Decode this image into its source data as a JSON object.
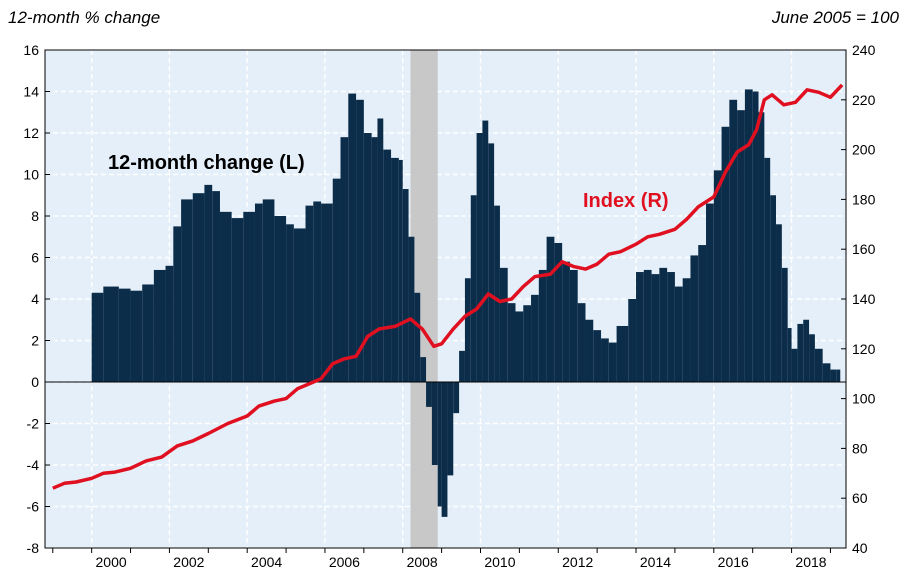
{
  "chart_data": {
    "type": "bar+line",
    "left_axis_unit": "12-month % change",
    "right_axis_unit": "June 2005 = 100",
    "annotations": [
      "12-month change (L)",
      "Index (R)"
    ],
    "x_range": [
      1998.8,
      2019.4
    ],
    "x_ticks": [
      "2000",
      "2002",
      "2004",
      "2006",
      "2008",
      "2010",
      "2012",
      "2014",
      "2016",
      "2018"
    ],
    "y_left": {
      "min": -8,
      "max": 16,
      "ticks": [
        "-8",
        "-6",
        "-4",
        "-2",
        "0",
        "2",
        "4",
        "6",
        "8",
        "10",
        "12",
        "14",
        "16"
      ]
    },
    "y_right": {
      "min": 40,
      "max": 240,
      "ticks": [
        "40",
        "60",
        "80",
        "100",
        "120",
        "140",
        "160",
        "180",
        "200",
        "220",
        "240"
      ]
    },
    "grid": true,
    "recession_band": [
      2008.2,
      2008.9
    ],
    "colors": {
      "bars": "#0c2d4a",
      "index_line": "#e01020",
      "plot_bg": "#e4eff9",
      "recession": "#c8c8c8"
    },
    "series": [
      {
        "name": "12-month change (L)",
        "kind": "bar",
        "axis": "left",
        "points": [
          [
            2000.0,
            4.3
          ],
          [
            2000.3,
            4.6
          ],
          [
            2000.7,
            4.5
          ],
          [
            2001.0,
            4.4
          ],
          [
            2001.3,
            4.7
          ],
          [
            2001.6,
            5.4
          ],
          [
            2001.9,
            5.6
          ],
          [
            2002.1,
            7.5
          ],
          [
            2002.3,
            8.8
          ],
          [
            2002.6,
            9.1
          ],
          [
            2002.9,
            9.5
          ],
          [
            2003.1,
            9.2
          ],
          [
            2003.3,
            8.2
          ],
          [
            2003.6,
            7.9
          ],
          [
            2003.9,
            8.2
          ],
          [
            2004.2,
            8.6
          ],
          [
            2004.4,
            8.8
          ],
          [
            2004.7,
            8.0
          ],
          [
            2005.0,
            7.6
          ],
          [
            2005.2,
            7.4
          ],
          [
            2005.5,
            8.5
          ],
          [
            2005.7,
            8.7
          ],
          [
            2005.9,
            8.6
          ],
          [
            2006.2,
            9.8
          ],
          [
            2006.4,
            11.8
          ],
          [
            2006.6,
            13.9
          ],
          [
            2006.8,
            13.6
          ],
          [
            2007.0,
            12.0
          ],
          [
            2007.2,
            11.8
          ],
          [
            2007.35,
            12.7
          ],
          [
            2007.5,
            11.2
          ],
          [
            2007.7,
            10.8
          ],
          [
            2007.9,
            10.7
          ],
          [
            2008.0,
            9.3
          ],
          [
            2008.15,
            7.0
          ],
          [
            2008.3,
            4.3
          ],
          [
            2008.45,
            1.2
          ],
          [
            2008.6,
            -1.2
          ],
          [
            2008.75,
            -4.0
          ],
          [
            2008.9,
            -6.0
          ],
          [
            2009.0,
            -6.5
          ],
          [
            2009.15,
            -4.5
          ],
          [
            2009.3,
            -1.5
          ],
          [
            2009.45,
            1.5
          ],
          [
            2009.6,
            5.0
          ],
          [
            2009.75,
            9.0
          ],
          [
            2009.9,
            12.0
          ],
          [
            2010.05,
            12.6
          ],
          [
            2010.2,
            11.5
          ],
          [
            2010.35,
            8.5
          ],
          [
            2010.5,
            5.5
          ],
          [
            2010.7,
            3.8
          ],
          [
            2010.9,
            3.4
          ],
          [
            2011.1,
            3.7
          ],
          [
            2011.3,
            4.2
          ],
          [
            2011.5,
            5.4
          ],
          [
            2011.7,
            7.0
          ],
          [
            2011.9,
            6.7
          ],
          [
            2012.1,
            5.8
          ],
          [
            2012.3,
            5.4
          ],
          [
            2012.5,
            3.8
          ],
          [
            2012.7,
            3.0
          ],
          [
            2012.9,
            2.5
          ],
          [
            2013.1,
            2.1
          ],
          [
            2013.3,
            1.9
          ],
          [
            2013.5,
            2.7
          ],
          [
            2013.8,
            4.0
          ],
          [
            2014.0,
            5.3
          ],
          [
            2014.2,
            5.4
          ],
          [
            2014.4,
            5.2
          ],
          [
            2014.6,
            5.5
          ],
          [
            2014.8,
            5.3
          ],
          [
            2015.0,
            4.6
          ],
          [
            2015.2,
            5.0
          ],
          [
            2015.4,
            6.1
          ],
          [
            2015.6,
            6.6
          ],
          [
            2015.8,
            8.6
          ],
          [
            2016.0,
            10.2
          ],
          [
            2016.2,
            12.3
          ],
          [
            2016.4,
            13.6
          ],
          [
            2016.6,
            13.1
          ],
          [
            2016.8,
            14.1
          ],
          [
            2017.0,
            14.0
          ],
          [
            2017.15,
            13.0
          ],
          [
            2017.3,
            10.8
          ],
          [
            2017.45,
            9.0
          ],
          [
            2017.6,
            7.6
          ],
          [
            2017.75,
            5.5
          ],
          [
            2017.9,
            2.6
          ],
          [
            2018.0,
            1.6
          ],
          [
            2018.15,
            2.8
          ],
          [
            2018.3,
            3.0
          ],
          [
            2018.45,
            2.3
          ],
          [
            2018.6,
            1.6
          ],
          [
            2018.8,
            0.9
          ],
          [
            2019.0,
            0.6
          ],
          [
            2019.15,
            0.6
          ]
        ]
      },
      {
        "name": "Index (R)",
        "kind": "line",
        "axis": "right",
        "points": [
          [
            1999.0,
            64
          ],
          [
            1999.3,
            66
          ],
          [
            1999.6,
            66.5
          ],
          [
            2000.0,
            68
          ],
          [
            2000.3,
            70
          ],
          [
            2000.6,
            70.5
          ],
          [
            2001.0,
            72
          ],
          [
            2001.4,
            75
          ],
          [
            2001.8,
            76.5
          ],
          [
            2002.2,
            81
          ],
          [
            2002.6,
            83
          ],
          [
            2003.0,
            86
          ],
          [
            2003.5,
            90
          ],
          [
            2004.0,
            93
          ],
          [
            2004.3,
            97
          ],
          [
            2004.7,
            99
          ],
          [
            2005.0,
            100
          ],
          [
            2005.3,
            104
          ],
          [
            2005.6,
            106
          ],
          [
            2005.9,
            108
          ],
          [
            2006.2,
            114
          ],
          [
            2006.5,
            116
          ],
          [
            2006.8,
            117
          ],
          [
            2007.1,
            125
          ],
          [
            2007.4,
            128
          ],
          [
            2007.8,
            129
          ],
          [
            2008.2,
            132
          ],
          [
            2008.5,
            128
          ],
          [
            2008.8,
            121
          ],
          [
            2009.0,
            122
          ],
          [
            2009.3,
            128
          ],
          [
            2009.6,
            133
          ],
          [
            2009.9,
            136
          ],
          [
            2010.2,
            142
          ],
          [
            2010.5,
            139
          ],
          [
            2010.8,
            140
          ],
          [
            2011.1,
            145
          ],
          [
            2011.4,
            149
          ],
          [
            2011.8,
            150
          ],
          [
            2012.1,
            155
          ],
          [
            2012.4,
            153
          ],
          [
            2012.7,
            152
          ],
          [
            2013.0,
            154
          ],
          [
            2013.3,
            158
          ],
          [
            2013.6,
            159
          ],
          [
            2014.0,
            162
          ],
          [
            2014.3,
            165
          ],
          [
            2014.6,
            166
          ],
          [
            2015.0,
            168
          ],
          [
            2015.3,
            172
          ],
          [
            2015.6,
            177
          ],
          [
            2016.0,
            181
          ],
          [
            2016.3,
            191
          ],
          [
            2016.6,
            199
          ],
          [
            2016.9,
            202
          ],
          [
            2017.1,
            208
          ],
          [
            2017.3,
            220
          ],
          [
            2017.5,
            222
          ],
          [
            2017.8,
            218
          ],
          [
            2018.1,
            219
          ],
          [
            2018.4,
            224
          ],
          [
            2018.7,
            223
          ],
          [
            2019.0,
            221
          ],
          [
            2019.3,
            226
          ]
        ]
      }
    ]
  }
}
